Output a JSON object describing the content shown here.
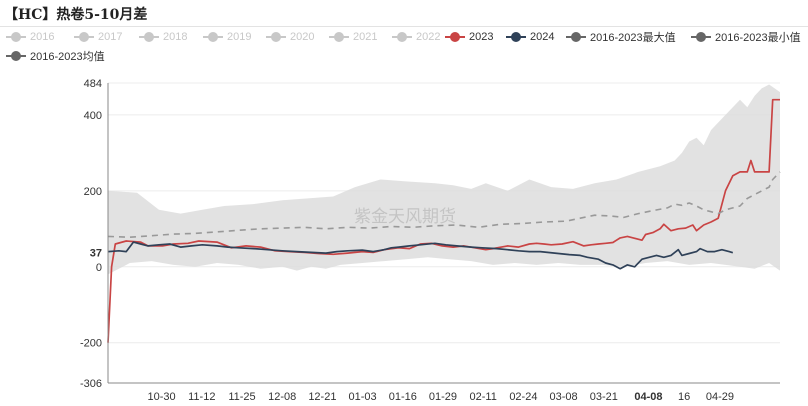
{
  "title": "【HC】热卷5-10月差",
  "watermark": "紫金天风期货",
  "legend": [
    {
      "label": "2016",
      "color": "#c8c8c8",
      "active": false
    },
    {
      "label": "2017",
      "color": "#c8c8c8",
      "active": false
    },
    {
      "label": "2018",
      "color": "#c8c8c8",
      "active": false
    },
    {
      "label": "2019",
      "color": "#c8c8c8",
      "active": false
    },
    {
      "label": "2020",
      "color": "#c8c8c8",
      "active": false
    },
    {
      "label": "2021",
      "color": "#c8c8c8",
      "active": false
    },
    {
      "label": "2022",
      "color": "#c8c8c8",
      "active": false
    },
    {
      "label": "2023",
      "color": "#c94444",
      "active": true
    },
    {
      "label": "2024",
      "color": "#2f4158",
      "active": true
    },
    {
      "label": "2016-2023最大值",
      "color": "#666666",
      "active": true
    },
    {
      "label": "2016-2023最小值",
      "color": "#666666",
      "active": true
    },
    {
      "label": "2016-2023均值",
      "color": "#666666",
      "active": true
    }
  ],
  "chart_data": {
    "type": "line",
    "x_ticks": [
      "10-30",
      "11-12",
      "11-25",
      "12-08",
      "12-21",
      "01-03",
      "01-16",
      "01-29",
      "02-11",
      "02-24",
      "03-08",
      "03-21",
      "04-08",
      "16",
      "04-29"
    ],
    "x_tick_index": [
      3,
      12,
      21,
      30,
      39,
      48,
      57,
      66,
      75,
      84,
      93,
      102,
      112,
      120,
      128
    ],
    "x_count": 150,
    "y_ticks": [
      -306,
      -200,
      0,
      37,
      200,
      400,
      484
    ],
    "ylim": [
      -306,
      484
    ],
    "grid": true,
    "highlighted_x_tick": "04-08",
    "y_marker": 37,
    "series": [
      {
        "name": "2023",
        "color": "#c94444",
        "points": [
          [
            0,
            -200
          ],
          [
            1,
            0
          ],
          [
            2,
            60
          ],
          [
            5,
            68
          ],
          [
            9,
            65
          ],
          [
            11,
            55
          ],
          [
            15,
            55
          ],
          [
            18,
            60
          ],
          [
            22,
            62
          ],
          [
            25,
            68
          ],
          [
            30,
            65
          ],
          [
            34,
            50
          ],
          [
            38,
            55
          ],
          [
            42,
            52
          ],
          [
            46,
            42
          ],
          [
            50,
            40
          ],
          [
            54,
            38
          ],
          [
            58,
            35
          ],
          [
            62,
            33
          ],
          [
            66,
            36
          ],
          [
            70,
            40
          ],
          [
            73,
            38
          ],
          [
            76,
            45
          ],
          [
            80,
            50
          ],
          [
            83,
            48
          ],
          [
            86,
            60
          ],
          [
            89,
            62
          ],
          [
            92,
            55
          ],
          [
            95,
            52
          ],
          [
            98,
            55
          ],
          [
            101,
            50
          ],
          [
            104,
            45
          ],
          [
            106,
            48
          ],
          [
            110,
            55
          ],
          [
            113,
            52
          ],
          [
            116,
            60
          ],
          [
            118,
            62
          ],
          [
            120,
            60
          ],
          [
            122,
            58
          ],
          [
            125,
            60
          ],
          [
            128,
            66
          ],
          [
            131,
            55
          ],
          [
            133,
            58
          ],
          [
            135,
            60
          ],
          [
            137,
            62
          ],
          [
            139,
            64
          ],
          [
            140,
            70
          ],
          [
            141,
            76
          ],
          [
            143,
            80
          ],
          [
            145,
            75
          ],
          [
            147,
            70
          ],
          [
            148,
            85
          ],
          [
            150,
            90
          ],
          [
            152,
            100
          ],
          [
            153,
            112
          ],
          [
            155,
            95
          ],
          [
            157,
            100
          ],
          [
            159,
            102
          ],
          [
            161,
            110
          ],
          [
            162,
            95
          ],
          [
            164,
            110
          ],
          [
            166,
            118
          ],
          [
            168,
            128
          ],
          [
            170,
            200
          ],
          [
            172,
            240
          ],
          [
            174,
            250
          ],
          [
            176,
            250
          ],
          [
            177,
            280
          ],
          [
            178,
            250
          ],
          [
            180,
            250
          ],
          [
            182,
            250
          ],
          [
            183,
            440
          ],
          [
            185,
            440
          ]
        ]
      },
      {
        "name": "2024",
        "color": "#2f4158",
        "points": [
          [
            0,
            40
          ],
          [
            3,
            42
          ],
          [
            5,
            40
          ],
          [
            7,
            65
          ],
          [
            9,
            60
          ],
          [
            11,
            55
          ],
          [
            14,
            58
          ],
          [
            17,
            60
          ],
          [
            20,
            52
          ],
          [
            23,
            55
          ],
          [
            26,
            58
          ],
          [
            30,
            55
          ],
          [
            33,
            52
          ],
          [
            36,
            50
          ],
          [
            40,
            48
          ],
          [
            44,
            45
          ],
          [
            48,
            42
          ],
          [
            52,
            40
          ],
          [
            56,
            38
          ],
          [
            60,
            36
          ],
          [
            63,
            40
          ],
          [
            66,
            42
          ],
          [
            70,
            44
          ],
          [
            73,
            40
          ],
          [
            76,
            45
          ],
          [
            78,
            50
          ],
          [
            80,
            52
          ],
          [
            83,
            55
          ],
          [
            86,
            58
          ],
          [
            90,
            62
          ],
          [
            93,
            58
          ],
          [
            96,
            55
          ],
          [
            100,
            52
          ],
          [
            103,
            50
          ],
          [
            107,
            48
          ],
          [
            110,
            45
          ],
          [
            113,
            42
          ],
          [
            116,
            40
          ],
          [
            119,
            40
          ],
          [
            121,
            38
          ],
          [
            124,
            35
          ],
          [
            127,
            32
          ],
          [
            130,
            30
          ],
          [
            132,
            25
          ],
          [
            135,
            20
          ],
          [
            137,
            10
          ],
          [
            139,
            5
          ],
          [
            141,
            -5
          ],
          [
            143,
            5
          ],
          [
            145,
            0
          ],
          [
            147,
            20
          ],
          [
            149,
            25
          ],
          [
            151,
            30
          ],
          [
            153,
            25
          ],
          [
            155,
            30
          ],
          [
            157,
            45
          ],
          [
            158,
            30
          ],
          [
            160,
            35
          ],
          [
            162,
            40
          ],
          [
            163,
            48
          ],
          [
            165,
            40
          ],
          [
            167,
            40
          ],
          [
            169,
            45
          ],
          [
            171,
            40
          ],
          [
            172,
            37
          ]
        ]
      },
      {
        "name": "2016-2023均值",
        "color": "#999999",
        "dashed": true,
        "points": [
          [
            0,
            80
          ],
          [
            6,
            78
          ],
          [
            12,
            82
          ],
          [
            18,
            86
          ],
          [
            24,
            88
          ],
          [
            30,
            92
          ],
          [
            36,
            96
          ],
          [
            42,
            100
          ],
          [
            48,
            102
          ],
          [
            54,
            104
          ],
          [
            60,
            100
          ],
          [
            66,
            104
          ],
          [
            72,
            102
          ],
          [
            78,
            106
          ],
          [
            84,
            104
          ],
          [
            90,
            108
          ],
          [
            96,
            110
          ],
          [
            102,
            104
          ],
          [
            108,
            112
          ],
          [
            114,
            114
          ],
          [
            120,
            118
          ],
          [
            126,
            120
          ],
          [
            130,
            128
          ],
          [
            134,
            136
          ],
          [
            138,
            134
          ],
          [
            142,
            130
          ],
          [
            146,
            140
          ],
          [
            150,
            148
          ],
          [
            154,
            155
          ],
          [
            156,
            165
          ],
          [
            158,
            162
          ],
          [
            160,
            168
          ],
          [
            162,
            160
          ],
          [
            164,
            150
          ],
          [
            166,
            145
          ],
          [
            168,
            140
          ],
          [
            170,
            150
          ],
          [
            172,
            155
          ],
          [
            174,
            160
          ],
          [
            176,
            180
          ],
          [
            178,
            190
          ],
          [
            180,
            200
          ],
          [
            182,
            210
          ],
          [
            183,
            230
          ],
          [
            185,
            250
          ]
        ]
      }
    ],
    "band": {
      "name": "2016-2023最大值/最小值",
      "color": "#dddddd",
      "upper": [
        [
          0,
          200
        ],
        [
          8,
          195
        ],
        [
          14,
          150
        ],
        [
          20,
          140
        ],
        [
          26,
          150
        ],
        [
          32,
          160
        ],
        [
          40,
          165
        ],
        [
          48,
          175
        ],
        [
          55,
          180
        ],
        [
          62,
          185
        ],
        [
          68,
          210
        ],
        [
          75,
          230
        ],
        [
          82,
          225
        ],
        [
          90,
          220
        ],
        [
          95,
          215
        ],
        [
          100,
          205
        ],
        [
          104,
          220
        ],
        [
          110,
          200
        ],
        [
          116,
          230
        ],
        [
          122,
          210
        ],
        [
          128,
          205
        ],
        [
          134,
          220
        ],
        [
          140,
          230
        ],
        [
          146,
          250
        ],
        [
          152,
          265
        ],
        [
          156,
          280
        ],
        [
          158,
          300
        ],
        [
          160,
          330
        ],
        [
          162,
          340
        ],
        [
          164,
          320
        ],
        [
          166,
          360
        ],
        [
          168,
          380
        ],
        [
          170,
          400
        ],
        [
          172,
          420
        ],
        [
          174,
          440
        ],
        [
          176,
          420
        ],
        [
          178,
          450
        ],
        [
          180,
          470
        ],
        [
          182,
          480
        ],
        [
          185,
          460
        ]
      ],
      "lower": [
        [
          0,
          -20
        ],
        [
          6,
          10
        ],
        [
          12,
          15
        ],
        [
          18,
          5
        ],
        [
          24,
          0
        ],
        [
          30,
          10
        ],
        [
          36,
          5
        ],
        [
          42,
          -5
        ],
        [
          48,
          0
        ],
        [
          52,
          -10
        ],
        [
          56,
          0
        ],
        [
          60,
          -5
        ],
        [
          64,
          5
        ],
        [
          70,
          10
        ],
        [
          76,
          15
        ],
        [
          82,
          20
        ],
        [
          88,
          25
        ],
        [
          94,
          20
        ],
        [
          100,
          15
        ],
        [
          106,
          5
        ],
        [
          112,
          10
        ],
        [
          118,
          5
        ],
        [
          124,
          10
        ],
        [
          130,
          5
        ],
        [
          136,
          5
        ],
        [
          142,
          0
        ],
        [
          148,
          10
        ],
        [
          154,
          15
        ],
        [
          160,
          5
        ],
        [
          166,
          10
        ],
        [
          170,
          5
        ],
        [
          174,
          0
        ],
        [
          178,
          -5
        ],
        [
          182,
          10
        ],
        [
          185,
          -10
        ]
      ]
    }
  }
}
